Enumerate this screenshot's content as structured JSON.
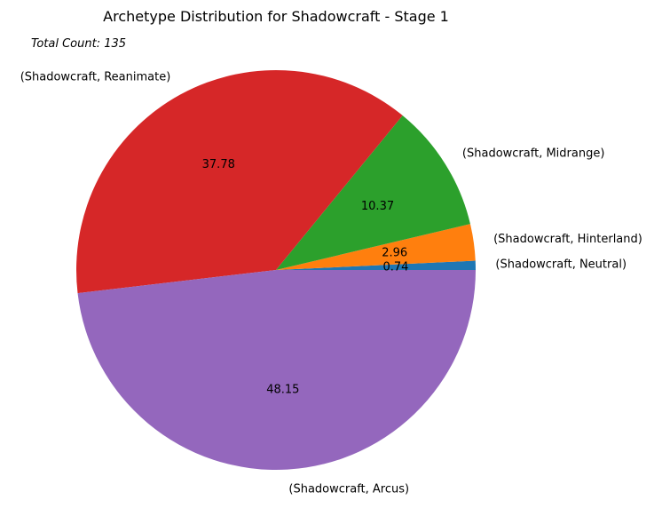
{
  "chart_data": {
    "type": "pie",
    "title": "Archetype Distribution for Shadowcraft - Stage 1",
    "subtitle": "Total Count: 135",
    "start_angle_deg": 0,
    "direction": "counterclockwise",
    "slices": [
      {
        "label": "(Shadowcraft, Neutral)",
        "value": 0.74,
        "pct_label": "0.74",
        "color": "#1f77b4"
      },
      {
        "label": "(Shadowcraft, Hinterland)",
        "value": 2.96,
        "pct_label": "2.96",
        "color": "#ff7f0e"
      },
      {
        "label": "(Shadowcraft, Midrange)",
        "value": 10.37,
        "pct_label": "10.37",
        "color": "#2ca02c"
      },
      {
        "label": "(Shadowcraft, Reanimate)",
        "value": 37.78,
        "pct_label": "37.78",
        "color": "#d62728"
      },
      {
        "label": "(Shadowcraft, Arcus)",
        "value": 48.15,
        "pct_label": "48.15",
        "color": "#9467bd"
      }
    ]
  }
}
